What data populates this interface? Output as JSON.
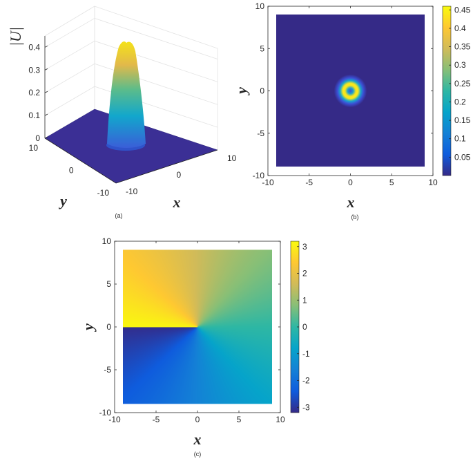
{
  "chart_data": [
    {
      "panel": "a",
      "type": "surface",
      "caption": "(a)",
      "xlabel": "x",
      "ylabel": "y",
      "zlabel": "|U|",
      "xlim": [
        -10,
        10
      ],
      "ylim": [
        -10,
        10
      ],
      "zlim": [
        0,
        0.45
      ],
      "x_ticks": [
        "-10",
        "0",
        "10"
      ],
      "y_ticks": [
        "-10",
        "0",
        "10"
      ],
      "z_ticks": [
        "0",
        "0.1",
        "0.2",
        "0.3",
        "0.4"
      ],
      "peak_value": 0.45,
      "grid": true,
      "colormap": "parula"
    },
    {
      "panel": "b",
      "type": "heatmap",
      "caption": "(b)",
      "xlabel": "x",
      "ylabel": "y",
      "xlim": [
        -10,
        10
      ],
      "ylim": [
        -10,
        10
      ],
      "data_extent": [
        -9,
        9
      ],
      "x_ticks": [
        "-10",
        "-5",
        "0",
        "5",
        "10"
      ],
      "y_ticks": [
        "-10",
        "-5",
        "0",
        "5",
        "10"
      ],
      "colorbar": {
        "range": [
          0,
          0.46
        ],
        "ticks": [
          "0.05",
          "0.1",
          "0.15",
          "0.2",
          "0.25",
          "0.3",
          "0.35",
          "0.4",
          "0.45"
        ]
      },
      "colormap": "parula",
      "ring_radius": 0.8,
      "peak_value": 0.45
    },
    {
      "panel": "c",
      "type": "heatmap",
      "caption": "(c)",
      "xlabel": "x",
      "ylabel": "y",
      "xlim": [
        -10,
        10
      ],
      "ylim": [
        -10,
        10
      ],
      "data_extent": [
        -9,
        9
      ],
      "x_ticks": [
        "-10",
        "-5",
        "0",
        "5",
        "10"
      ],
      "y_ticks": [
        "-10",
        "-5",
        "0",
        "5",
        "10"
      ],
      "colorbar": {
        "range": [
          -3.2,
          3.2
        ],
        "ticks": [
          "3",
          "2",
          "1",
          "0",
          "-1",
          "-2",
          "-3"
        ]
      },
      "colormap": "parula"
    }
  ],
  "colors": {
    "parula_low": "#352a87",
    "parula_mid": "#10b4c8",
    "parula_high": "#f9fb0e"
  }
}
